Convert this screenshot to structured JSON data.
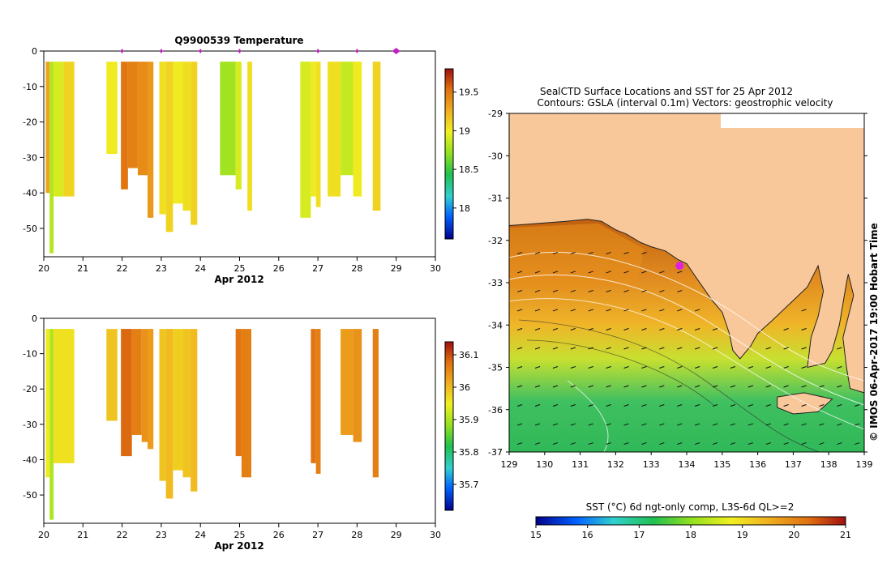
{
  "temp_plot": {
    "title": "Q9900539  Temperature",
    "xlabel": "Apr 2012",
    "x_ticks": [
      "20",
      "21",
      "22",
      "23",
      "24",
      "25",
      "26",
      "27",
      "28",
      "29",
      "30"
    ],
    "y_ticks": [
      "0",
      "-10",
      "-20",
      "-30",
      "-40",
      "-50"
    ],
    "cbar_ticks": [
      "19.5",
      "19",
      "18.5",
      "18"
    ]
  },
  "sal_plot": {
    "xlabel": "Apr 2012",
    "x_ticks": [
      "20",
      "21",
      "22",
      "23",
      "24",
      "25",
      "26",
      "27",
      "28",
      "29",
      "30"
    ],
    "y_ticks": [
      "0",
      "-10",
      "-20",
      "-30",
      "-40",
      "-50"
    ],
    "cbar_ticks": [
      "36.1",
      "36",
      "35.9",
      "35.8",
      "35.7"
    ]
  },
  "map": {
    "title_line1": "SealCTD Surface Locations and SST for 25 Apr 2012",
    "title_line2": "Contours: GSLA (interval 0.1m) Vectors: geostrophic velocity",
    "lat_ticks": [
      "-29",
      "-30",
      "-31",
      "-32",
      "-33",
      "-34",
      "-35",
      "-36",
      "-37"
    ],
    "lon_ticks": [
      "129",
      "130",
      "131",
      "132",
      "133",
      "134",
      "135",
      "136",
      "137",
      "138",
      "139"
    ],
    "side_label": "© IMOS 06-Apr-2017 19:00 Hobart Time",
    "cbar_label": "SST (°C) 6d ngt-only comp, L3S-6d QL>=2",
    "cbar_ticks": [
      "15",
      "16",
      "17",
      "18",
      "19",
      "20",
      "21"
    ]
  },
  "chart_data": [
    {
      "type": "heatmap",
      "name": "temperature-profile",
      "title": "Q9900539  Temperature",
      "xlabel": "Apr 2012",
      "ylabel": "",
      "xlim": [
        20,
        30
      ],
      "ylim": [
        -58,
        0
      ],
      "clim": [
        17.6,
        19.8
      ],
      "colorscale": [
        "#00008c",
        "#0060ff",
        "#30d0d0",
        "#20c050",
        "#90e020",
        "#f0f020",
        "#f0b020",
        "#e07010",
        "#a01010"
      ],
      "profile_markers": [
        22,
        23,
        24,
        25,
        27,
        28,
        29
      ],
      "profiles": [
        {
          "x0": 20.05,
          "x1": 20.15,
          "depth": 40,
          "value": 19.3
        },
        {
          "x0": 20.15,
          "x1": 20.25,
          "depth": 57,
          "value": 18.8
        },
        {
          "x0": 20.25,
          "x1": 20.5,
          "depth": 41,
          "value": 18.9
        },
        {
          "x0": 20.5,
          "x1": 20.78,
          "depth": 41,
          "value": 19.1
        },
        {
          "x0": 21.6,
          "x1": 21.88,
          "depth": 29,
          "value": 19.0
        },
        {
          "x0": 21.97,
          "x1": 22.15,
          "depth": 39,
          "value": 19.5
        },
        {
          "x0": 22.15,
          "x1": 22.4,
          "depth": 33,
          "value": 19.45
        },
        {
          "x0": 22.4,
          "x1": 22.65,
          "depth": 35,
          "value": 19.4
        },
        {
          "x0": 22.65,
          "x1": 22.8,
          "depth": 47,
          "value": 19.35
        },
        {
          "x0": 22.95,
          "x1": 23.12,
          "depth": 46,
          "value": 19.05
        },
        {
          "x0": 23.12,
          "x1": 23.3,
          "depth": 51,
          "value": 19.1
        },
        {
          "x0": 23.3,
          "x1": 23.55,
          "depth": 43,
          "value": 19.0
        },
        {
          "x0": 23.55,
          "x1": 23.75,
          "depth": 45,
          "value": 19.05
        },
        {
          "x0": 23.75,
          "x1": 23.92,
          "depth": 49,
          "value": 19.1
        },
        {
          "x0": 24.5,
          "x1": 24.9,
          "depth": 35,
          "value": 18.75
        },
        {
          "x0": 24.9,
          "x1": 25.05,
          "depth": 39,
          "value": 18.9
        },
        {
          "x0": 25.2,
          "x1": 25.32,
          "depth": 45,
          "value": 19.05
        },
        {
          "x0": 26.55,
          "x1": 26.82,
          "depth": 47,
          "value": 18.9
        },
        {
          "x0": 26.82,
          "x1": 26.95,
          "depth": 41,
          "value": 19.0
        },
        {
          "x0": 26.95,
          "x1": 27.07,
          "depth": 44,
          "value": 19.05
        },
        {
          "x0": 27.25,
          "x1": 27.58,
          "depth": 41,
          "value": 19.05
        },
        {
          "x0": 27.58,
          "x1": 27.9,
          "depth": 35,
          "value": 18.85
        },
        {
          "x0": 27.9,
          "x1": 28.12,
          "depth": 41,
          "value": 19.0
        },
        {
          "x0": 28.4,
          "x1": 28.6,
          "depth": 45,
          "value": 19.1
        }
      ]
    },
    {
      "type": "heatmap",
      "name": "salinity-profile",
      "title": "",
      "xlabel": "Apr 2012",
      "ylabel": "",
      "xlim": [
        20,
        30
      ],
      "ylim": [
        -58,
        0
      ],
      "clim": [
        35.62,
        36.14
      ],
      "colorscale": [
        "#00008c",
        "#0060ff",
        "#30d0d0",
        "#20c050",
        "#90e020",
        "#f0f020",
        "#f0b020",
        "#e07010",
        "#a01010"
      ],
      "profiles": [
        {
          "x0": 20.05,
          "x1": 20.15,
          "depth": 45,
          "value": 35.95
        },
        {
          "x0": 20.15,
          "x1": 20.25,
          "depth": 57,
          "value": 35.9
        },
        {
          "x0": 20.25,
          "x1": 20.78,
          "depth": 41,
          "value": 35.96
        },
        {
          "x0": 21.6,
          "x1": 21.88,
          "depth": 29,
          "value": 35.99
        },
        {
          "x0": 21.97,
          "x1": 22.25,
          "depth": 39,
          "value": 36.08
        },
        {
          "x0": 22.25,
          "x1": 22.5,
          "depth": 33,
          "value": 36.06
        },
        {
          "x0": 22.5,
          "x1": 22.65,
          "depth": 35,
          "value": 36.04
        },
        {
          "x0": 22.65,
          "x1": 22.8,
          "depth": 37,
          "value": 36.03
        },
        {
          "x0": 22.95,
          "x1": 23.12,
          "depth": 46,
          "value": 35.99
        },
        {
          "x0": 23.12,
          "x1": 23.3,
          "depth": 51,
          "value": 36.0
        },
        {
          "x0": 23.3,
          "x1": 23.55,
          "depth": 43,
          "value": 35.98
        },
        {
          "x0": 23.55,
          "x1": 23.75,
          "depth": 45,
          "value": 35.99
        },
        {
          "x0": 23.75,
          "x1": 23.92,
          "depth": 49,
          "value": 36.0
        },
        {
          "x0": 24.9,
          "x1": 25.05,
          "depth": 39,
          "value": 36.07
        },
        {
          "x0": 25.05,
          "x1": 25.3,
          "depth": 45,
          "value": 36.06
        },
        {
          "x0": 26.82,
          "x1": 26.95,
          "depth": 41,
          "value": 36.07
        },
        {
          "x0": 26.95,
          "x1": 27.07,
          "depth": 44,
          "value": 36.06
        },
        {
          "x0": 27.58,
          "x1": 27.9,
          "depth": 33,
          "value": 36.03
        },
        {
          "x0": 27.9,
          "x1": 28.12,
          "depth": 35,
          "value": 36.04
        },
        {
          "x0": 28.4,
          "x1": 28.55,
          "depth": 45,
          "value": 36.06
        }
      ]
    },
    {
      "type": "heatmap",
      "name": "sst-map",
      "title": "SealCTD Surface Locations and SST for 25 Apr 2012",
      "subtitle": "Contours: GSLA (interval 0.1m) Vectors: geostrophic velocity",
      "xlabel": "",
      "ylabel": "",
      "xlim": [
        129,
        139
      ],
      "ylim": [
        -37,
        -29
      ],
      "clim": [
        15,
        21
      ],
      "colorbar_label": "SST (°C) 6d ngt-only comp, L3S-6d QL>=2",
      "colorbar_ticks": [
        15,
        16,
        17,
        18,
        19,
        20,
        21
      ],
      "land_color": "#f8c89a",
      "seal_location": {
        "lon": 133.8,
        "lat": -32.6
      },
      "coastline": [
        [
          129.0,
          -31.65
        ],
        [
          129.8,
          -31.6
        ],
        [
          130.6,
          -31.55
        ],
        [
          131.2,
          -31.5
        ],
        [
          131.6,
          -31.55
        ],
        [
          132.0,
          -31.75
        ],
        [
          132.3,
          -31.85
        ],
        [
          132.7,
          -32.05
        ],
        [
          133.0,
          -32.15
        ],
        [
          133.4,
          -32.25
        ],
        [
          133.75,
          -32.45
        ],
        [
          134.0,
          -32.55
        ],
        [
          134.2,
          -32.8
        ],
        [
          134.45,
          -33.1
        ],
        [
          134.7,
          -33.4
        ],
        [
          135.0,
          -33.7
        ],
        [
          135.2,
          -34.2
        ],
        [
          135.3,
          -34.6
        ],
        [
          135.5,
          -34.8
        ],
        [
          135.8,
          -34.5
        ],
        [
          136.0,
          -34.2
        ],
        [
          136.4,
          -33.9
        ],
        [
          136.9,
          -33.5
        ],
        [
          137.4,
          -33.1
        ],
        [
          137.7,
          -32.6
        ],
        [
          137.85,
          -33.2
        ],
        [
          137.7,
          -33.8
        ],
        [
          137.5,
          -34.3
        ],
        [
          137.4,
          -35.0
        ],
        [
          137.9,
          -34.9
        ],
        [
          138.1,
          -34.6
        ],
        [
          138.3,
          -34.0
        ],
        [
          138.5,
          -33.0
        ],
        [
          138.55,
          -32.8
        ],
        [
          138.7,
          -33.3
        ],
        [
          138.4,
          -34.3
        ],
        [
          138.5,
          -35.0
        ],
        [
          138.6,
          -35.5
        ],
        [
          139.0,
          -35.6
        ]
      ],
      "islands": [
        [
          [
            136.55,
            -35.7
          ],
          [
            137.3,
            -35.6
          ],
          [
            138.1,
            -35.75
          ],
          [
            137.7,
            -36.05
          ],
          [
            137.0,
            -36.1
          ],
          [
            136.55,
            -35.95
          ]
        ]
      ]
    }
  ]
}
